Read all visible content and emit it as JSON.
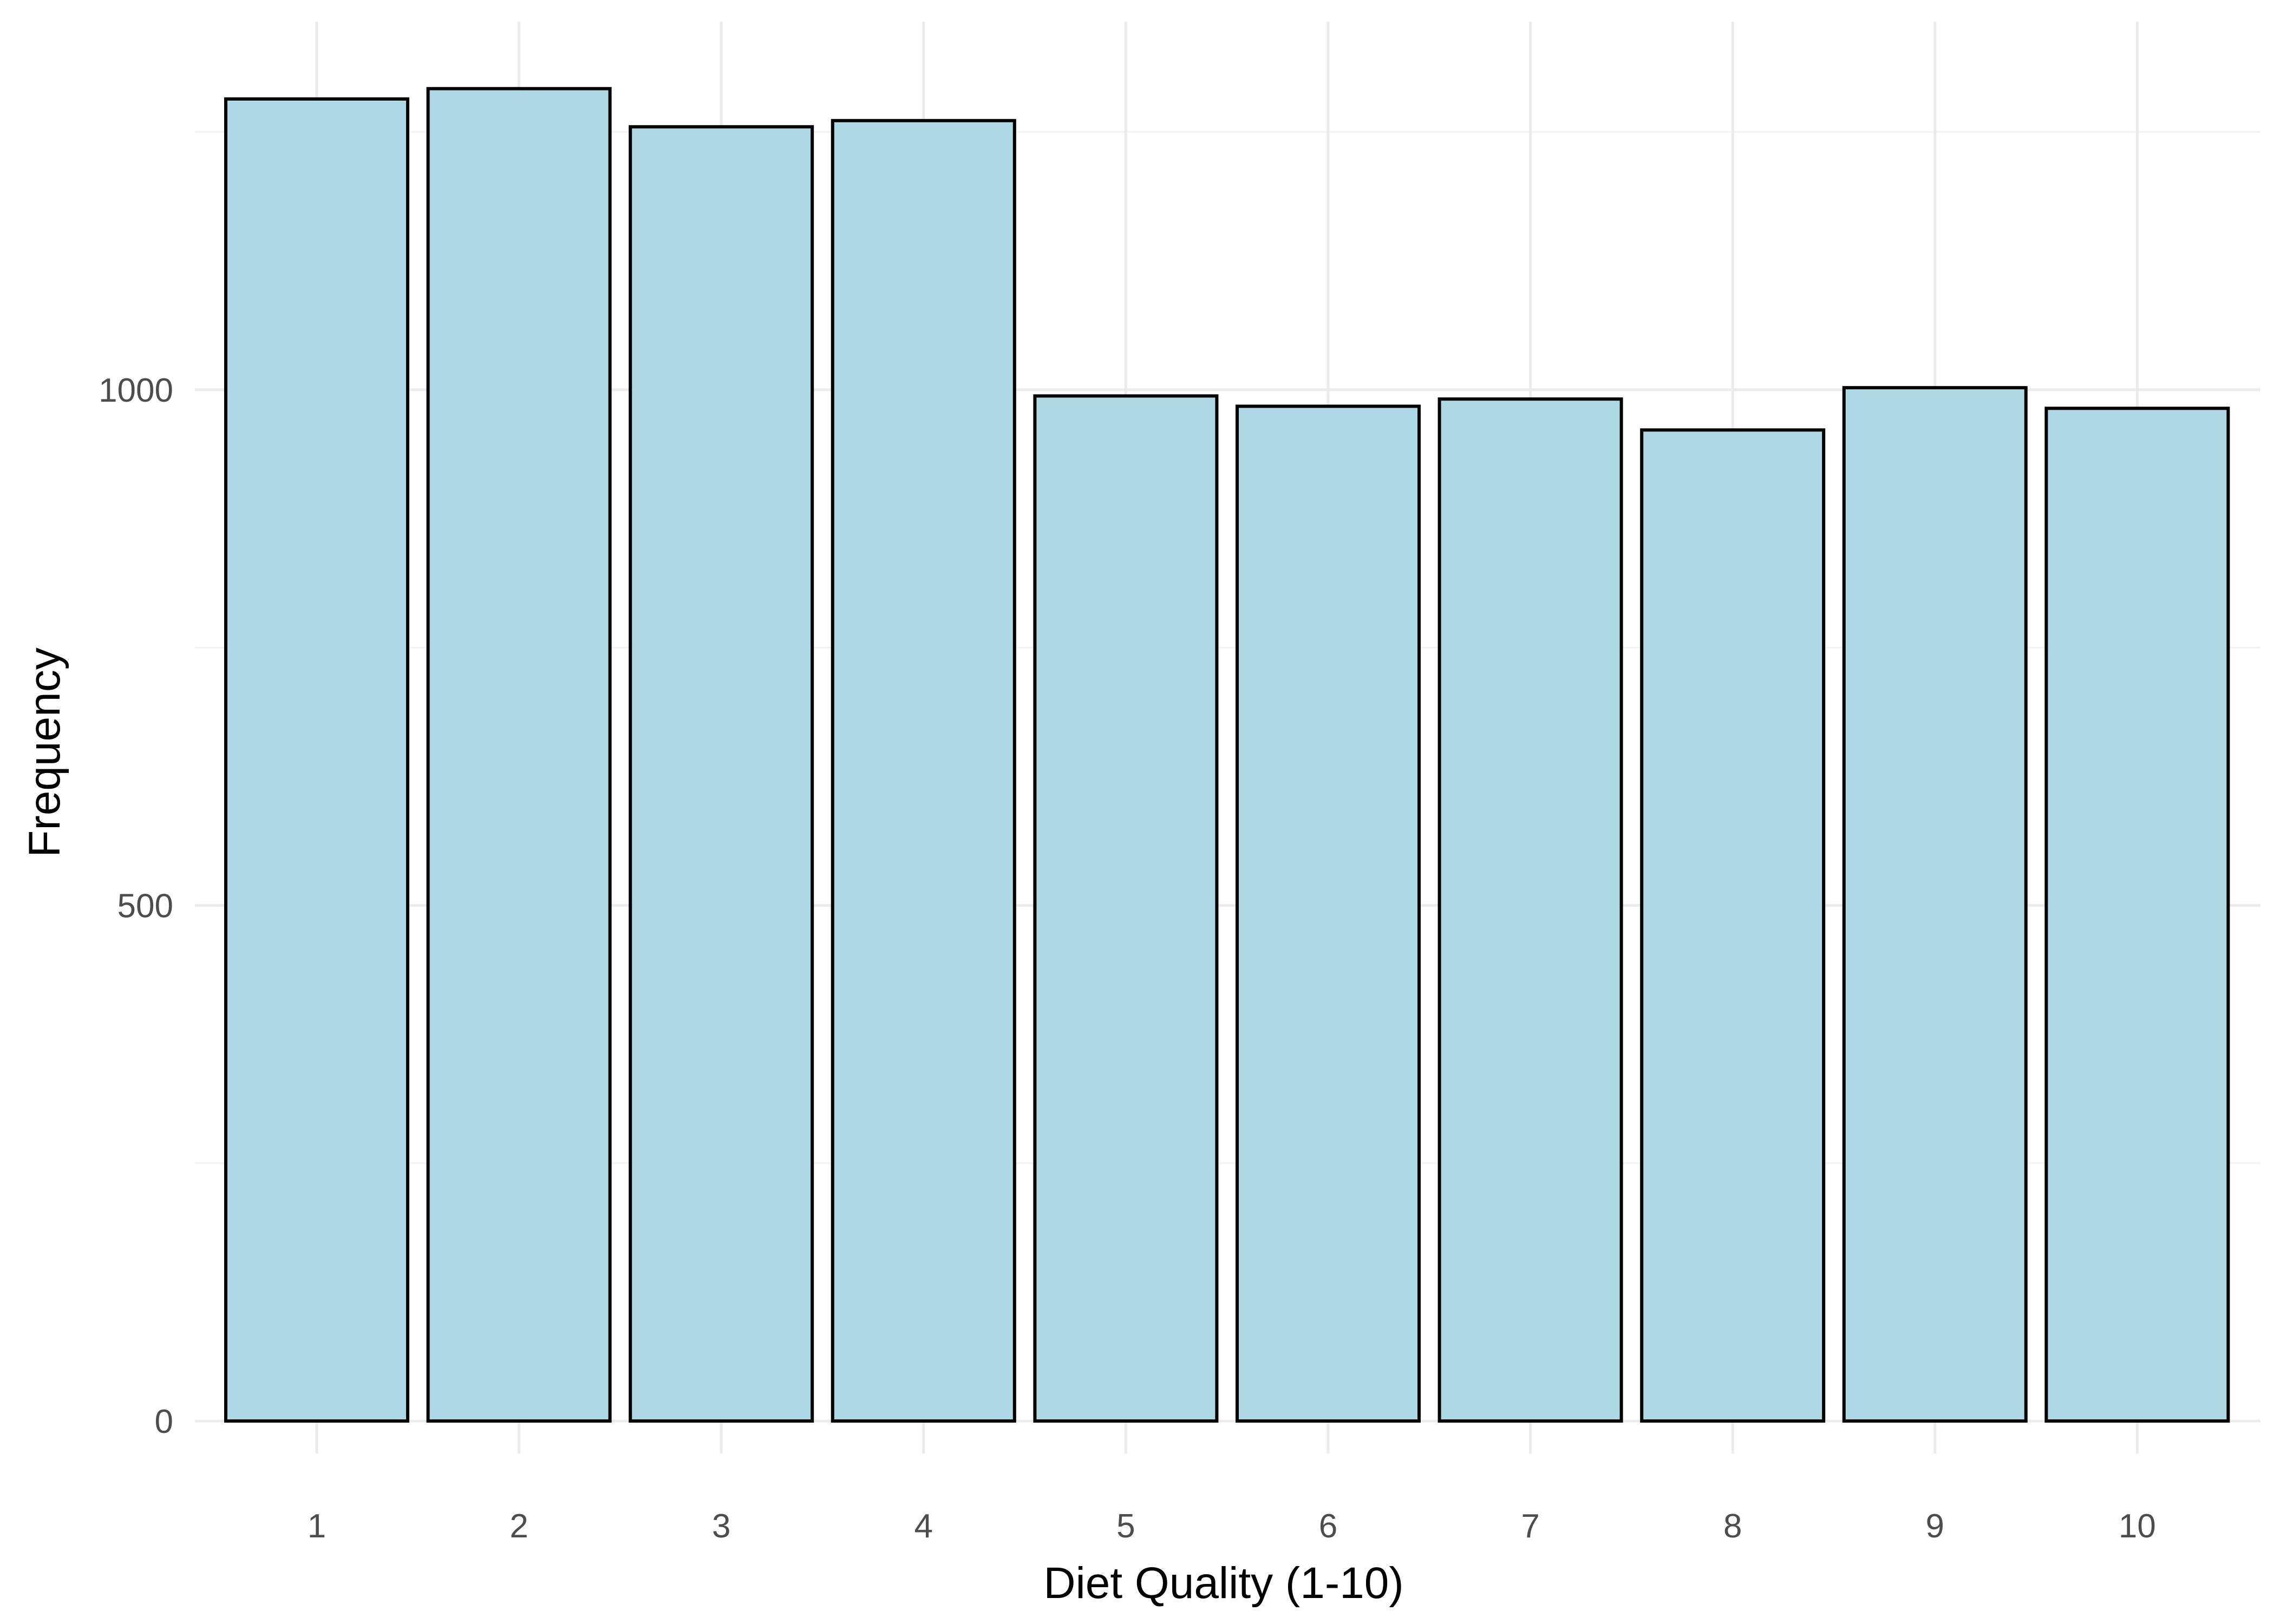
{
  "chart_data": {
    "type": "bar",
    "categories": [
      "1",
      "2",
      "3",
      "4",
      "5",
      "6",
      "7",
      "8",
      "9",
      "10"
    ],
    "values": [
      1282,
      1292,
      1255,
      1261,
      994,
      984,
      991,
      961,
      1002,
      982
    ],
    "title": "",
    "xlabel": "Diet Quality (1-10)",
    "ylabel": "Frequency",
    "ylim": [
      0,
      1300
    ],
    "yticks": [
      0,
      500,
      1000
    ],
    "y_minor_ticks": [
      250,
      750,
      1250
    ],
    "grid": true,
    "bar_fill": "#add8e6",
    "bar_outline": "#000000"
  }
}
